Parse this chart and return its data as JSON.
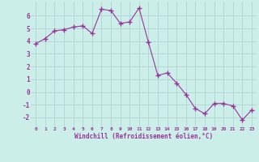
{
  "x": [
    0,
    1,
    2,
    3,
    4,
    5,
    6,
    7,
    8,
    9,
    10,
    11,
    12,
    13,
    14,
    15,
    16,
    17,
    18,
    19,
    20,
    21,
    22,
    23
  ],
  "y": [
    3.8,
    4.2,
    4.8,
    4.9,
    5.1,
    5.2,
    4.6,
    6.5,
    6.4,
    5.4,
    5.5,
    6.6,
    3.9,
    1.3,
    1.5,
    0.7,
    -0.2,
    -1.3,
    -1.7,
    -0.9,
    -0.9,
    -1.1,
    -2.2,
    -1.4
  ],
  "line_color": "#993399",
  "marker": "+",
  "marker_size": 4,
  "bg_color": "#cceee8",
  "grid_color": "#aacccc",
  "xlabel": "Windchill (Refroidissement éolien,°C)",
  "xlabel_color": "#993399",
  "tick_color": "#993399",
  "xlim": [
    -0.5,
    23.5
  ],
  "ylim": [
    -2.7,
    7.1
  ],
  "yticks": [
    -2,
    -1,
    0,
    1,
    2,
    3,
    4,
    5,
    6
  ],
  "xticks": [
    0,
    1,
    2,
    3,
    4,
    5,
    6,
    7,
    8,
    9,
    10,
    11,
    12,
    13,
    14,
    15,
    16,
    17,
    18,
    19,
    20,
    21,
    22,
    23
  ]
}
